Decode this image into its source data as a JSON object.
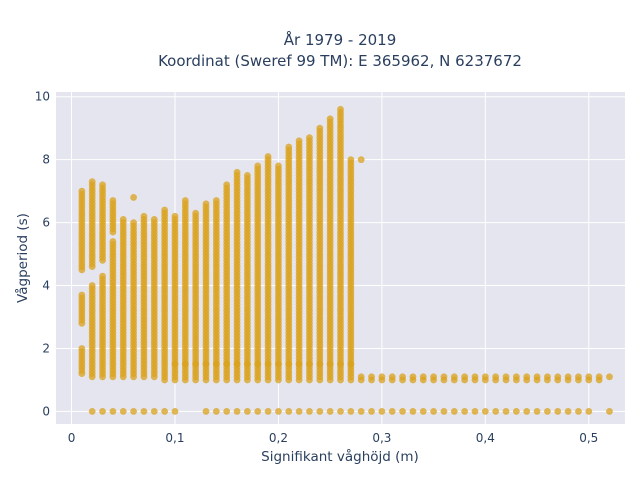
{
  "chart_data": {
    "type": "scatter",
    "title_lines": [
      "År 1979 - 2019",
      "Koordinat (Sweref 99 TM): E 365962, N 6237672"
    ],
    "xlabel": "Signifikant våghöjd (m)",
    "ylabel": "Vågperiod (s)",
    "xlim": [
      -0.015,
      0.535
    ],
    "ylim": [
      -0.4,
      10.15
    ],
    "x_ticks": [
      0,
      0.1,
      0.2,
      0.3,
      0.4,
      0.5
    ],
    "x_tick_labels": [
      "0",
      "0,1",
      "0,2",
      "0,3",
      "0,4",
      "0,5"
    ],
    "y_ticks": [
      0,
      2,
      4,
      6,
      8,
      10
    ],
    "y_tick_labels": [
      "0",
      "2",
      "4",
      "6",
      "8",
      "10"
    ],
    "grid": true,
    "background": "#e5e5ef",
    "marker_color": "#d9a21c",
    "column_step": 0.01,
    "columns": [
      {
        "x": 0.01,
        "ranges": [
          [
            1.2,
            2.0
          ],
          [
            2.8,
            3.7
          ],
          [
            4.5,
            7.0
          ]
        ],
        "zero": false
      },
      {
        "x": 0.02,
        "ranges": [
          [
            1.1,
            4.0
          ],
          [
            4.6,
            7.3
          ]
        ],
        "zero": true
      },
      {
        "x": 0.03,
        "ranges": [
          [
            1.1,
            4.3
          ],
          [
            4.8,
            7.2
          ]
        ],
        "zero": true
      },
      {
        "x": 0.04,
        "ranges": [
          [
            1.1,
            5.4
          ],
          [
            5.7,
            6.7
          ]
        ],
        "zero": true
      },
      {
        "x": 0.05,
        "ranges": [
          [
            1.1,
            6.1
          ]
        ],
        "zero": true
      },
      {
        "x": 0.06,
        "ranges": [
          [
            1.1,
            6.0
          ],
          [
            6.8,
            6.8
          ]
        ],
        "zero": true
      },
      {
        "x": 0.07,
        "ranges": [
          [
            1.1,
            6.2
          ]
        ],
        "zero": true
      },
      {
        "x": 0.08,
        "ranges": [
          [
            1.1,
            6.1
          ]
        ],
        "zero": true
      },
      {
        "x": 0.09,
        "ranges": [
          [
            1.0,
            6.4
          ]
        ],
        "zero": true
      },
      {
        "x": 0.1,
        "ranges": [
          [
            1.0,
            6.2
          ]
        ],
        "zero": true
      },
      {
        "x": 0.11,
        "ranges": [
          [
            1.0,
            6.7
          ]
        ],
        "zero": false
      },
      {
        "x": 0.12,
        "ranges": [
          [
            1.0,
            6.3
          ]
        ],
        "zero": false
      },
      {
        "x": 0.13,
        "ranges": [
          [
            1.0,
            6.6
          ]
        ],
        "zero": true
      },
      {
        "x": 0.14,
        "ranges": [
          [
            1.0,
            6.7
          ]
        ],
        "zero": true
      },
      {
        "x": 0.15,
        "ranges": [
          [
            1.0,
            7.2
          ]
        ],
        "zero": true
      },
      {
        "x": 0.16,
        "ranges": [
          [
            1.0,
            7.6
          ]
        ],
        "zero": true
      },
      {
        "x": 0.17,
        "ranges": [
          [
            1.0,
            7.5
          ]
        ],
        "zero": true
      },
      {
        "x": 0.18,
        "ranges": [
          [
            1.0,
            7.8
          ]
        ],
        "zero": true
      },
      {
        "x": 0.19,
        "ranges": [
          [
            1.0,
            8.1
          ]
        ],
        "zero": true
      },
      {
        "x": 0.2,
        "ranges": [
          [
            1.0,
            7.8
          ]
        ],
        "zero": true
      },
      {
        "x": 0.21,
        "ranges": [
          [
            1.0,
            8.4
          ]
        ],
        "zero": true
      },
      {
        "x": 0.22,
        "ranges": [
          [
            1.0,
            8.6
          ]
        ],
        "zero": true
      },
      {
        "x": 0.23,
        "ranges": [
          [
            1.0,
            8.7
          ]
        ],
        "zero": true
      },
      {
        "x": 0.24,
        "ranges": [
          [
            1.0,
            9.0
          ]
        ],
        "zero": true
      },
      {
        "x": 0.25,
        "ranges": [
          [
            1.0,
            9.3
          ]
        ],
        "zero": true
      },
      {
        "x": 0.26,
        "ranges": [
          [
            1.0,
            9.6
          ]
        ],
        "zero": true
      },
      {
        "x": 0.27,
        "ranges": [
          [
            1.0,
            8.0
          ]
        ],
        "zero": true
      },
      {
        "x": 0.28,
        "ranges": [
          [
            1.0,
            1.1
          ],
          [
            8.0,
            8.0
          ]
        ],
        "zero": true
      },
      {
        "x": 0.29,
        "ranges": [
          [
            1.0,
            1.1
          ]
        ],
        "zero": true
      },
      {
        "x": 0.3,
        "ranges": [
          [
            1.0,
            1.1
          ]
        ],
        "zero": true
      },
      {
        "x": 0.31,
        "ranges": [
          [
            1.0,
            1.1
          ]
        ],
        "zero": true
      },
      {
        "x": 0.32,
        "ranges": [
          [
            1.0,
            1.1
          ]
        ],
        "zero": true
      },
      {
        "x": 0.33,
        "ranges": [
          [
            1.0,
            1.1
          ]
        ],
        "zero": true
      },
      {
        "x": 0.34,
        "ranges": [
          [
            1.0,
            1.1
          ]
        ],
        "zero": true
      },
      {
        "x": 0.35,
        "ranges": [
          [
            1.0,
            1.1
          ]
        ],
        "zero": true
      },
      {
        "x": 0.36,
        "ranges": [
          [
            1.0,
            1.1
          ]
        ],
        "zero": true
      },
      {
        "x": 0.37,
        "ranges": [
          [
            1.0,
            1.1
          ]
        ],
        "zero": true
      },
      {
        "x": 0.38,
        "ranges": [
          [
            1.0,
            1.1
          ]
        ],
        "zero": true
      },
      {
        "x": 0.39,
        "ranges": [
          [
            1.0,
            1.1
          ]
        ],
        "zero": true
      },
      {
        "x": 0.4,
        "ranges": [
          [
            1.0,
            1.1
          ]
        ],
        "zero": true
      },
      {
        "x": 0.41,
        "ranges": [
          [
            1.0,
            1.1
          ]
        ],
        "zero": true
      },
      {
        "x": 0.42,
        "ranges": [
          [
            1.0,
            1.1
          ]
        ],
        "zero": true
      },
      {
        "x": 0.43,
        "ranges": [
          [
            1.0,
            1.1
          ]
        ],
        "zero": true
      },
      {
        "x": 0.44,
        "ranges": [
          [
            1.0,
            1.1
          ]
        ],
        "zero": true
      },
      {
        "x": 0.45,
        "ranges": [
          [
            1.0,
            1.1
          ]
        ],
        "zero": true
      },
      {
        "x": 0.46,
        "ranges": [
          [
            1.0,
            1.1
          ]
        ],
        "zero": true
      },
      {
        "x": 0.47,
        "ranges": [
          [
            1.0,
            1.1
          ]
        ],
        "zero": true
      },
      {
        "x": 0.48,
        "ranges": [
          [
            1.0,
            1.1
          ]
        ],
        "zero": true
      },
      {
        "x": 0.49,
        "ranges": [
          [
            1.0,
            1.1
          ]
        ],
        "zero": true
      },
      {
        "x": 0.5,
        "ranges": [
          [
            1.0,
            1.1
          ]
        ],
        "zero": true
      },
      {
        "x": 0.51,
        "ranges": [
          [
            1.0,
            1.1
          ]
        ],
        "zero": false
      },
      {
        "x": 0.52,
        "ranges": [
          [
            1.1,
            1.1
          ]
        ],
        "zero": true
      }
    ],
    "point_spacing": 0.1
  }
}
